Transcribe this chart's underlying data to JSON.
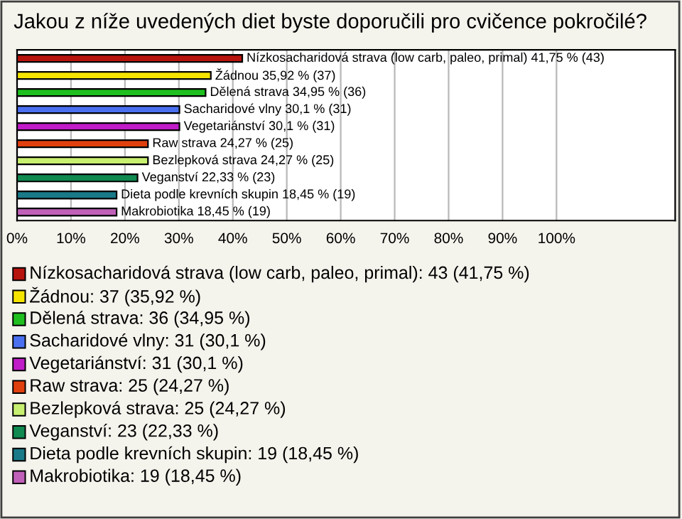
{
  "chart_data": {
    "type": "bar",
    "orientation": "horizontal",
    "title": "Jakou z níže uvedených diet byste doporučili pro cvičence pokročilé?",
    "categories": [
      "Nízkosacharidová strava (low carb, paleo, primal)",
      "Žádnou",
      "Dělená strava",
      "Sacharidové vlny",
      "Vegetariánství",
      "Raw strava",
      "Bezlepková strava",
      "Veganství",
      "Dieta podle krevních skupin",
      "Makrobiotika"
    ],
    "values": [
      41.75,
      35.92,
      34.95,
      30.1,
      30.1,
      24.27,
      24.27,
      22.33,
      18.45,
      18.45
    ],
    "value_labels": [
      "41,75 % (43)",
      "35,92 % (37)",
      "34,95 % (36)",
      "30,1 % (31)",
      "30,1 % (31)",
      "24,27 % (25)",
      "24,27 % (25)",
      "22,33 % (23)",
      "18,45 % (19)",
      "18,45 % (19)"
    ],
    "colors": [
      "#b8140e",
      "#f5e400",
      "#1fbf1f",
      "#4a70f0",
      "#c01cc8",
      "#e0400e",
      "#c8f070",
      "#108a50",
      "#1a7a88",
      "#c060b8"
    ],
    "xlim": [
      0,
      122
    ],
    "xticks": [
      {
        "value": 0,
        "label": "0%"
      },
      {
        "value": 10,
        "label": "10%"
      },
      {
        "value": 20,
        "label": "20%"
      },
      {
        "value": 30,
        "label": "30%"
      },
      {
        "value": 40,
        "label": "40%"
      },
      {
        "value": 50,
        "label": "50%"
      },
      {
        "value": 60,
        "label": "60%"
      },
      {
        "value": 70,
        "label": "70%"
      },
      {
        "value": 80,
        "label": "80%"
      },
      {
        "value": 90,
        "label": "90%"
      },
      {
        "value": 100,
        "label": "100%"
      }
    ],
    "grid": "x",
    "annotations": [
      "Nízkosacharidová strava (low carb, paleo, primal): 43 (41,75 %)",
      "Žádnou: 37 (35,92 %)",
      "Dělená strava: 36 (34,95 %)",
      "Sacharidové vlny: 31 (30,1 %)",
      "Vegetariánství: 31 (30,1 %)",
      "Raw strava: 25 (24,27 %)",
      "Bezlepková strava: 25 (24,27 %)",
      "Veganství: 23 (22,33 %)",
      "Dieta podle krevních skupin: 19 (18,45 %)",
      "Makrobiotika: 19 (18,45 %)"
    ]
  }
}
